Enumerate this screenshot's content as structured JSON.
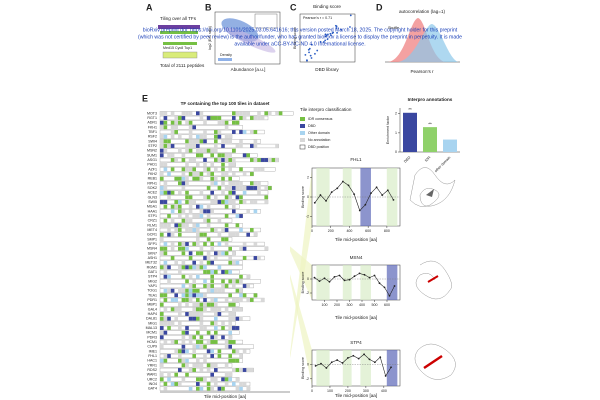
{
  "panel_labels": [
    "A",
    "B",
    "C",
    "D",
    "E"
  ],
  "notice": [
    "bioRxiv preprint doi: https://doi.org/10.1101/2025.03.05.641616; this version posted March 18, 2025. The copyright holder for this preprint",
    "(which was not certified by peer review) is the author/funder, who has granted bioRxiv a license to display the preprint in perpetuity. It is made",
    "available under aCC-BY-NC-ND 4.0 International license."
  ],
  "panel_a": {
    "title": "Tiling over all TFs",
    "genes": "Med15 Cyc8 Tup1",
    "total": "Total of 2111 peptides"
  },
  "panel_b": {
    "xlabel": "Abundance [a.u.]",
    "ylabel": "log2 (E/C ratio)",
    "legend": "Density"
  },
  "panel_c": {
    "title": "Binding score",
    "annotation": "Pearson's r = 0.71",
    "xlabel": "DBD library",
    "ylabel": "Binding score"
  },
  "panel_d": {
    "title": "autocorrelation (lag=1)",
    "xlabel": "Pearson's r",
    "legend": "Shuffle"
  },
  "panel_e": {
    "title": "TF containing the top 100 tiles in dataset",
    "xlabel": "Tile mid-position [aa]",
    "legend": {
      "title": "Tile interpro classification",
      "items": [
        "IDR consensus",
        "DBD",
        "Other domain",
        "No annotation",
        "DBD position"
      ]
    },
    "genes": [
      "MOT3",
      "RGT1",
      "ADR1",
      "FKH1",
      "TBF1",
      "RSF2",
      "SWI4",
      "STP2",
      "MSN2",
      "SUM1",
      "ASG1",
      "PHD1",
      "AZF1",
      "FKH2",
      "REB1",
      "RPH1",
      "SOK2",
      "ACE2",
      "GLN3",
      "SWI5",
      "MGA1",
      "HAA1",
      "STP1",
      "CRZ1",
      "RLM1",
      "MET4",
      "GCR1",
      "SMP1",
      "SFP1",
      "MSN4",
      "SKN7",
      "ASH1",
      "MET32",
      "RGM1",
      "GAT1",
      "STP4",
      "MIG2",
      "YAP1",
      "TOG1",
      "TEA1",
      "PDR1",
      "MBP1",
      "GAL4",
      "HAP4",
      "DAL81",
      "MIG1",
      "MAL13",
      "MCM1",
      "PDR3",
      "HCM1",
      "CUP9",
      "IME1",
      "FHL1",
      "HAC1",
      "YRR1",
      "RDS2",
      "WAR1",
      "URC2",
      "INO4",
      "GAT4"
    ]
  },
  "interpro": {
    "title": "Interpro annotations",
    "ylabel": "Enrichment factor",
    "categories": [
      "DBD",
      "IDR",
      "other domain"
    ],
    "values": [
      2.05,
      1.3,
      0.65
    ],
    "colors": [
      "#3a47a0",
      "#8fd16a",
      "#a8d4f0"
    ],
    "significance": [
      "**",
      "**"
    ],
    "ylim": [
      0,
      2.3
    ],
    "yticks": [
      0,
      1,
      2
    ]
  },
  "profiles": [
    {
      "name": "FHL1",
      "xlabel": "Tile mid-position [aa]",
      "ylabel": "Binding score",
      "xlim": [
        0,
        940
      ],
      "xticks": [
        0,
        200,
        400,
        600,
        800
      ],
      "ylim": [
        -3,
        3
      ],
      "yticks": [
        -2,
        0,
        2
      ],
      "x": [
        30,
        90,
        150,
        210,
        270,
        330,
        390,
        450,
        510,
        570,
        630,
        690,
        750,
        810,
        870
      ],
      "values": [
        -0.6,
        0.2,
        -0.4,
        0.5,
        0.9,
        1.6,
        1.2,
        0.3,
        -1.4,
        -0.8,
        0.4,
        1.0,
        0.2,
        0.7,
        -0.3
      ]
    },
    {
      "name": "MSN4",
      "xlabel": "Tile mid-position [aa]",
      "ylabel": "Binding score",
      "xlim": [
        0,
        704
      ],
      "xticks": [
        100,
        200,
        300,
        400,
        500,
        600
      ],
      "ylim": [
        -3,
        2
      ],
      "yticks": [
        -2,
        0
      ],
      "x": [
        20,
        60,
        100,
        140,
        180,
        220,
        260,
        300,
        340,
        380,
        420,
        460,
        500,
        540,
        580,
        620,
        660
      ],
      "values": [
        0.2,
        -0.3,
        0.1,
        -0.4,
        0.3,
        0.5,
        -0.2,
        -0.1,
        0.4,
        0.8,
        0.6,
        0.2,
        0.5,
        -0.6,
        -1.2,
        -2.4,
        -1.0
      ]
    },
    {
      "name": "STP4",
      "xlabel": "Tile mid-position [aa]",
      "ylabel": "Binding score",
      "xlim": [
        0,
        490
      ],
      "xticks": [
        0,
        100,
        200,
        300,
        400
      ],
      "ylim": [
        -3,
        2
      ],
      "yticks": [
        -2,
        0
      ],
      "x": [
        20,
        50,
        80,
        110,
        140,
        170,
        200,
        230,
        260,
        290,
        320,
        350,
        380,
        410,
        440
      ],
      "values": [
        -0.2,
        0.1,
        -0.5,
        0.3,
        0.6,
        0.2,
        0.9,
        1.2,
        0.8,
        1.4,
        0.7,
        0.3,
        1.0,
        -1.6,
        -0.4
      ]
    }
  ]
}
